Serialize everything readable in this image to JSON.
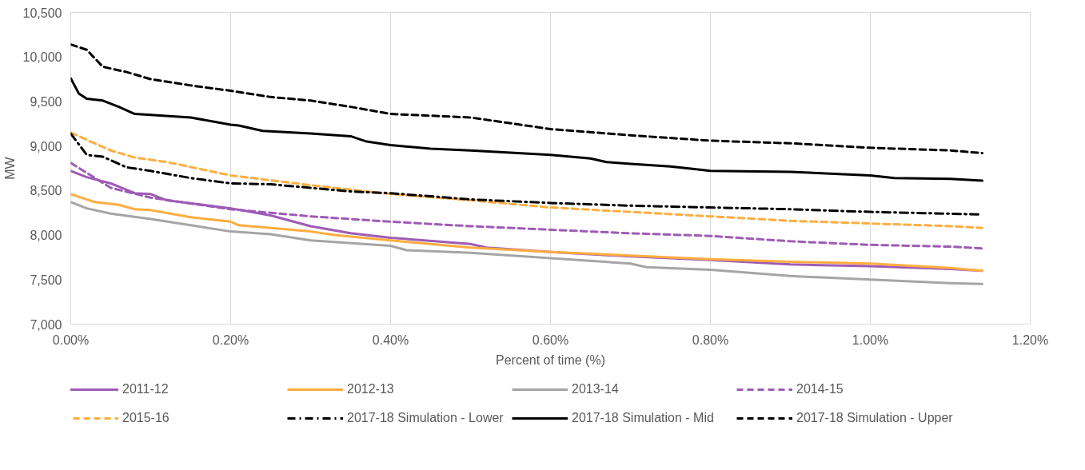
{
  "chart_data": {
    "type": "line",
    "xlabel": "Percent of time (%)",
    "ylabel": "MW",
    "xlim": [
      0,
      1.2
    ],
    "ylim": [
      7000,
      10500
    ],
    "xticks": [
      {
        "value": 0,
        "label": "0.00%"
      },
      {
        "value": 0.2,
        "label": "0.20%"
      },
      {
        "value": 0.4,
        "label": "0.40%"
      },
      {
        "value": 0.6,
        "label": "0.60%"
      },
      {
        "value": 0.8,
        "label": "0.80%"
      },
      {
        "value": 1.0,
        "label": "1.00%"
      },
      {
        "value": 1.2,
        "label": "1.20%"
      }
    ],
    "yticks": [
      {
        "value": 7000,
        "label": "7,000"
      },
      {
        "value": 7500,
        "label": "7,500"
      },
      {
        "value": 8000,
        "label": "8,000"
      },
      {
        "value": 8500,
        "label": "8,500"
      },
      {
        "value": 9000,
        "label": "9,000"
      },
      {
        "value": 9500,
        "label": "9,500"
      },
      {
        "value": 10000,
        "label": "10,000"
      },
      {
        "value": 10500,
        "label": "10,500"
      }
    ],
    "grid": "x",
    "legend": "bottom",
    "marker": "none",
    "series": [
      {
        "name": "2011-12",
        "color": "#9e5bb6",
        "line_style": "solid",
        "x": [
          0,
          0.02,
          0.05,
          0.08,
          0.1,
          0.12,
          0.2,
          0.25,
          0.3,
          0.35,
          0.4,
          0.5,
          0.52,
          0.6,
          0.7,
          0.8,
          0.9,
          1.0,
          1.1,
          1.14
        ],
        "values": [
          8720,
          8650,
          8580,
          8470,
          8460,
          8390,
          8300,
          8220,
          8100,
          8020,
          7970,
          7900,
          7860,
          7810,
          7760,
          7720,
          7670,
          7650,
          7620,
          7600
        ]
      },
      {
        "name": "2012-13",
        "color": "#ffad3f",
        "line_style": "solid",
        "x": [
          0,
          0.03,
          0.06,
          0.08,
          0.1,
          0.15,
          0.2,
          0.21,
          0.3,
          0.33,
          0.4,
          0.5,
          0.6,
          0.7,
          0.8,
          0.9,
          1.0,
          1.1,
          1.14
        ],
        "values": [
          8460,
          8370,
          8340,
          8290,
          8280,
          8200,
          8150,
          8110,
          8040,
          8000,
          7940,
          7860,
          7810,
          7770,
          7730,
          7700,
          7680,
          7630,
          7600
        ]
      },
      {
        "name": "2013-14",
        "color": "#a5a5a5",
        "line_style": "solid",
        "x": [
          0,
          0.02,
          0.05,
          0.1,
          0.15,
          0.2,
          0.25,
          0.3,
          0.4,
          0.42,
          0.5,
          0.6,
          0.7,
          0.72,
          0.8,
          0.9,
          1.0,
          1.1,
          1.14
        ],
        "values": [
          8370,
          8300,
          8240,
          8180,
          8110,
          8040,
          8010,
          7940,
          7880,
          7830,
          7800,
          7740,
          7680,
          7640,
          7610,
          7540,
          7500,
          7460,
          7450
        ]
      },
      {
        "name": "2014-15",
        "color": "#9e5bb6",
        "line_style": "dashed",
        "x": [
          0,
          0.05,
          0.1,
          0.2,
          0.3,
          0.4,
          0.5,
          0.6,
          0.7,
          0.8,
          0.85,
          0.9,
          1.0,
          1.1,
          1.14
        ],
        "values": [
          8810,
          8530,
          8420,
          8290,
          8210,
          8150,
          8100,
          8060,
          8020,
          7990,
          7960,
          7930,
          7890,
          7870,
          7850
        ]
      },
      {
        "name": "2015-16",
        "color": "#ffad3f",
        "line_style": "dashed",
        "x": [
          0,
          0.05,
          0.08,
          0.12,
          0.2,
          0.3,
          0.4,
          0.5,
          0.6,
          0.7,
          0.8,
          0.9,
          1.0,
          1.1,
          1.14
        ],
        "values": [
          9150,
          8950,
          8870,
          8820,
          8670,
          8560,
          8460,
          8390,
          8310,
          8260,
          8210,
          8160,
          8130,
          8100,
          8080
        ]
      },
      {
        "name": "2017-18 Simulation - Lower",
        "color": "#000000",
        "line_style": "dashdot",
        "x": [
          0,
          0.02,
          0.04,
          0.07,
          0.1,
          0.15,
          0.2,
          0.25,
          0.3,
          0.35,
          0.4,
          0.5,
          0.6,
          0.7,
          0.8,
          0.9,
          1.0,
          1.1,
          1.14
        ],
        "values": [
          9140,
          8900,
          8880,
          8760,
          8720,
          8640,
          8580,
          8570,
          8530,
          8490,
          8470,
          8400,
          8360,
          8330,
          8310,
          8290,
          8260,
          8240,
          8230
        ]
      },
      {
        "name": "2017-18 Simulation - Mid",
        "color": "#000000",
        "line_style": "solid",
        "x": [
          0,
          0.01,
          0.02,
          0.04,
          0.06,
          0.08,
          0.1,
          0.15,
          0.2,
          0.21,
          0.24,
          0.3,
          0.35,
          0.37,
          0.4,
          0.45,
          0.5,
          0.6,
          0.65,
          0.67,
          0.7,
          0.75,
          0.78,
          0.8,
          0.9,
          0.95,
          1.0,
          1.03,
          1.1,
          1.14
        ],
        "values": [
          9760,
          9590,
          9530,
          9510,
          9440,
          9360,
          9350,
          9320,
          9240,
          9230,
          9170,
          9140,
          9110,
          9050,
          9010,
          8970,
          8950,
          8900,
          8860,
          8820,
          8800,
          8770,
          8740,
          8720,
          8710,
          8690,
          8670,
          8640,
          8630,
          8610
        ]
      },
      {
        "name": "2017-18 Simulation - Upper",
        "color": "#000000",
        "line_style": "dashed",
        "x": [
          0,
          0.02,
          0.04,
          0.07,
          0.1,
          0.15,
          0.2,
          0.25,
          0.3,
          0.35,
          0.4,
          0.5,
          0.6,
          0.7,
          0.8,
          0.9,
          1.0,
          1.1,
          1.14
        ],
        "values": [
          10140,
          10080,
          9890,
          9830,
          9750,
          9680,
          9620,
          9550,
          9510,
          9440,
          9360,
          9320,
          9190,
          9120,
          9060,
          9030,
          8980,
          8950,
          8920
        ]
      }
    ]
  }
}
